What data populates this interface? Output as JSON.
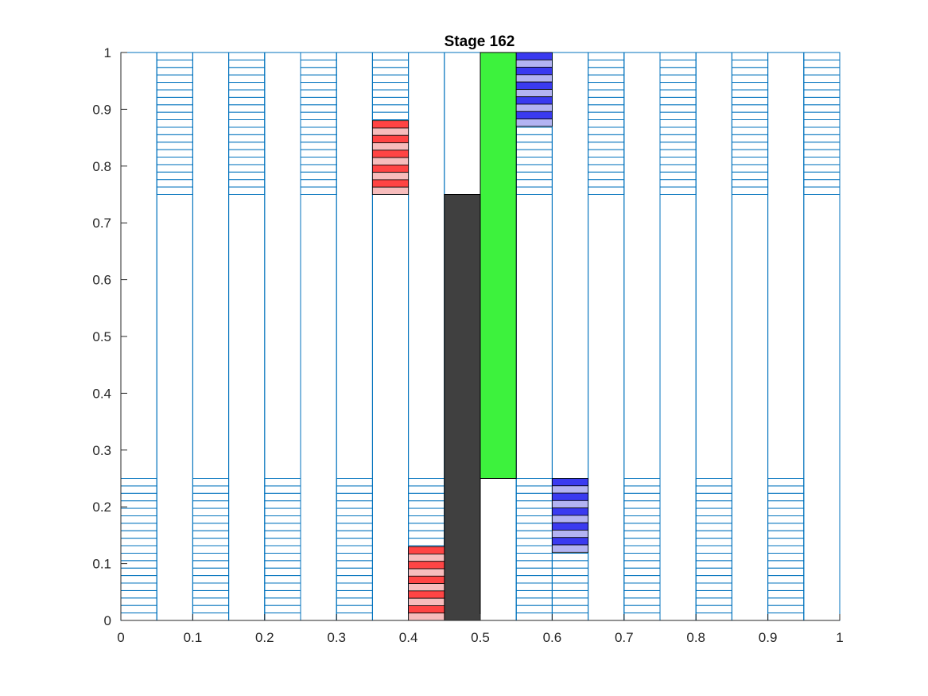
{
  "chart_data": {
    "type": "bar",
    "title": "Stage 162",
    "xlabel": "",
    "ylabel": "",
    "xlim": [
      0,
      1
    ],
    "ylim": [
      0,
      1
    ],
    "xticks": [
      "0",
      "0.1",
      "0.2",
      "0.3",
      "0.4",
      "0.5",
      "0.6",
      "0.7",
      "0.8",
      "0.9",
      "1"
    ],
    "yticks": [
      "0",
      "0.1",
      "0.2",
      "0.3",
      "0.4",
      "0.5",
      "0.6",
      "0.7",
      "0.8",
      "0.9",
      "1"
    ],
    "grid": false,
    "legend": "none",
    "colors": {
      "outline": "#0072BD",
      "red_dark": "#ff4444",
      "red_light": "#f7bcbc",
      "blue_dark": "#3a3af0",
      "blue_light": "#b3b3f2",
      "green": "#3df23d",
      "black": "#404040"
    },
    "columns": [
      {
        "x0": 0.0,
        "x1": 0.05,
        "bottom": [
          0.0,
          0.25
        ],
        "top": null
      },
      {
        "x0": 0.05,
        "x1": 0.1,
        "bottom": null,
        "top": [
          0.75,
          1.0
        ]
      },
      {
        "x0": 0.1,
        "x1": 0.15,
        "bottom": [
          0.0,
          0.25
        ],
        "top": null
      },
      {
        "x0": 0.15,
        "x1": 0.2,
        "bottom": null,
        "top": [
          0.75,
          1.0
        ]
      },
      {
        "x0": 0.2,
        "x1": 0.25,
        "bottom": [
          0.0,
          0.25
        ],
        "top": null
      },
      {
        "x0": 0.25,
        "x1": 0.3,
        "bottom": null,
        "top": [
          0.75,
          1.0
        ]
      },
      {
        "x0": 0.3,
        "x1": 0.35,
        "bottom": [
          0.0,
          0.25
        ],
        "top": null
      },
      {
        "x0": 0.35,
        "x1": 0.4,
        "bottom": null,
        "top": [
          0.75,
          1.0
        ]
      },
      {
        "x0": 0.4,
        "x1": 0.45,
        "bottom": [
          0.0,
          0.25
        ],
        "top": null
      },
      {
        "x0": 0.45,
        "x1": 0.5,
        "bottom": null,
        "top": null
      },
      {
        "x0": 0.5,
        "x1": 0.55,
        "bottom": null,
        "top": null
      },
      {
        "x0": 0.55,
        "x1": 0.6,
        "bottom": [
          0.0,
          0.25
        ],
        "top": [
          0.75,
          1.0
        ]
      },
      {
        "x0": 0.6,
        "x1": 0.65,
        "bottom": [
          0.0,
          0.25
        ],
        "top": null
      },
      {
        "x0": 0.65,
        "x1": 0.7,
        "bottom": null,
        "top": [
          0.75,
          1.0
        ]
      },
      {
        "x0": 0.7,
        "x1": 0.75,
        "bottom": [
          0.0,
          0.25
        ],
        "top": null
      },
      {
        "x0": 0.75,
        "x1": 0.8,
        "bottom": null,
        "top": [
          0.75,
          1.0
        ]
      },
      {
        "x0": 0.8,
        "x1": 0.85,
        "bottom": [
          0.0,
          0.25
        ],
        "top": null
      },
      {
        "x0": 0.85,
        "x1": 0.9,
        "bottom": null,
        "top": [
          0.75,
          1.0
        ]
      },
      {
        "x0": 0.9,
        "x1": 0.95,
        "bottom": [
          0.0,
          0.25
        ],
        "top": null
      },
      {
        "x0": 0.95,
        "x1": 1.0,
        "bottom": null,
        "top": [
          0.75,
          1.0
        ]
      }
    ],
    "solid_bars": [
      {
        "name": "black-bar",
        "x0": 0.45,
        "x1": 0.5,
        "y0": 0.0,
        "y1": 0.75,
        "color": "black"
      },
      {
        "name": "green-bar",
        "x0": 0.5,
        "x1": 0.55,
        "y0": 0.25,
        "y1": 1.0,
        "color": "green"
      }
    ],
    "striped_blocks": [
      {
        "name": "red-block-upper",
        "x0": 0.35,
        "x1": 0.4,
        "y0": 0.75,
        "y1": 0.88,
        "scheme": "red"
      },
      {
        "name": "red-block-lower",
        "x0": 0.4,
        "x1": 0.45,
        "y0": 0.0,
        "y1": 0.13,
        "scheme": "red"
      },
      {
        "name": "blue-block-upper",
        "x0": 0.55,
        "x1": 0.6,
        "y0": 0.87,
        "y1": 1.0,
        "scheme": "blue"
      },
      {
        "name": "blue-block-lower",
        "x0": 0.6,
        "x1": 0.65,
        "y0": 0.12,
        "y1": 0.25,
        "scheme": "blue"
      }
    ],
    "stripe_count_outline": 19,
    "stripe_count_colored": 10
  }
}
